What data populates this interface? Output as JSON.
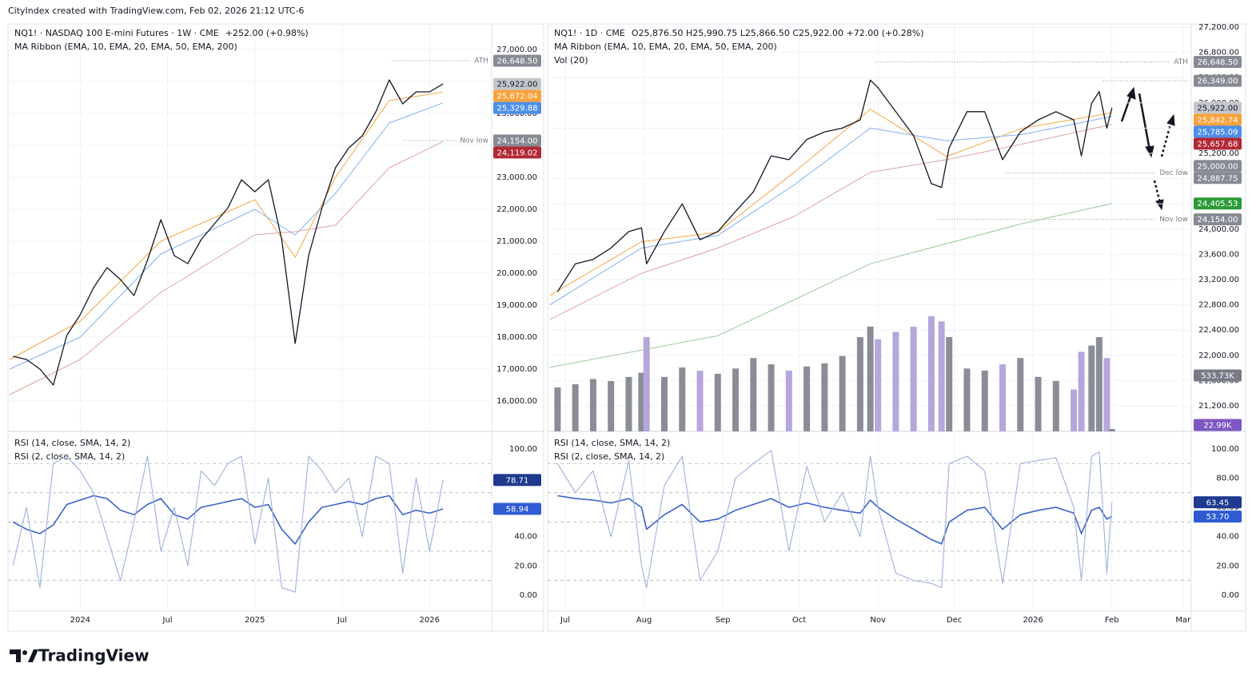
{
  "header": "CityIndex created with TradingView.com, Feb 02, 2026 21:12 UTC-6",
  "footer": "TradingView",
  "chart_data": [
    {
      "type": "line",
      "title": "NQ1! · NASDAQ 100 E-mini Futures · 1W · CME",
      "change": "+252.00 (+0.98%)",
      "indicator": "MA Ribbon (EMA, 10, EMA, 20, EMA, 50, EMA, 200)",
      "x": [
        -20,
        -16,
        -12,
        -8,
        -4,
        0,
        4,
        8,
        12,
        16,
        20,
        24,
        28,
        32,
        36,
        40,
        44,
        48,
        52,
        56,
        60,
        64,
        68,
        72,
        76,
        80,
        84,
        88,
        92,
        96,
        100,
        104,
        108
      ],
      "values": [
        17400,
        17300,
        17000,
        16500,
        18050,
        18700,
        19550,
        20175,
        19800,
        19300,
        20400,
        21675,
        20550,
        20300,
        21050,
        21550,
        22050,
        22925,
        22550,
        22925,
        21050,
        17800,
        20550,
        22050,
        23300,
        23925,
        24300,
        25050,
        26050,
        25300,
        25675,
        25675,
        25922
      ],
      "color": "#131722",
      "last": {
        "value": 25922,
        "label": "25,922.00"
      },
      "xlim": [
        -21.5,
        122.5
      ],
      "xticks": [
        {
          "value": 0,
          "label": "2024"
        },
        {
          "value": 26,
          "label": "Jul"
        },
        {
          "value": 52,
          "label": "2025"
        },
        {
          "value": 78,
          "label": "Jul"
        },
        {
          "value": 104,
          "label": "2026"
        }
      ],
      "ylim": [
        15050,
        27800
      ],
      "yticks": [
        {
          "value": 16000,
          "label": "16,000.00"
        },
        {
          "value": 17000,
          "label": "17,000.00"
        },
        {
          "value": 18000,
          "label": "18,000.00"
        },
        {
          "value": 19000,
          "label": "19,000.00"
        },
        {
          "value": 20000,
          "label": "20,000.00"
        },
        {
          "value": 21000,
          "label": "21,000.00"
        },
        {
          "value": 22000,
          "label": "22,000.00"
        },
        {
          "value": 23000,
          "label": "23,000.00"
        },
        {
          "value": 24000,
          "label": "24,000.00"
        },
        {
          "value": 25000,
          "label": "25,000.00"
        },
        {
          "value": 26000,
          "label": "26,000.00"
        },
        {
          "value": 27000,
          "label": "27,000.00"
        }
      ],
      "emas": [
        {
          "color": "#f5a742",
          "badge_color": "#f7a23b",
          "x": [
            -21,
            0,
            24,
            52,
            64,
            76,
            92,
            108
          ],
          "values": [
            17300,
            18500,
            21000,
            22300,
            20500,
            23000,
            25400,
            25672.04
          ],
          "last_label": "25,672.04"
        },
        {
          "color": "#7fb0ee",
          "badge_color": "#4d8fe8",
          "x": [
            -21,
            0,
            24,
            52,
            64,
            76,
            92,
            108
          ],
          "values": [
            17000,
            18000,
            20600,
            22000,
            21200,
            22500,
            24700,
            25329.88
          ],
          "last_label": "25,329.88"
        },
        {
          "color": "#dea3a3",
          "badge_color": "#b22833",
          "x": [
            -21,
            0,
            24,
            52,
            64,
            76,
            92,
            108
          ],
          "values": [
            16200,
            17300,
            19400,
            21200,
            21300,
            21500,
            23300,
            24119.02
          ],
          "last_label": "24,119.02"
        }
      ],
      "levels": [
        {
          "value": 26648.5,
          "label": "26,648.50",
          "name": "ATH"
        },
        {
          "value": 24154,
          "label": "24,154.00",
          "name": "Nov low"
        }
      ],
      "rsi": {
        "ylim": [
          -11,
          112
        ],
        "yticks": [
          {
            "value": 0,
            "label": "0.00"
          },
          {
            "value": 20,
            "label": "20.00"
          },
          {
            "value": 40,
            "label": "40.00"
          },
          {
            "value": 60,
            "label": "60.00"
          },
          {
            "value": 80,
            "label": "80.00"
          },
          {
            "value": 100,
            "label": "100.00"
          }
        ],
        "levels": [
          90,
          70,
          50,
          30,
          10
        ],
        "series": [
          {
            "title": "RSI (14, close, SMA, 14, 2)",
            "color": "#3c62c8",
            "badge_color": "#2f5bd3",
            "values": [
              50,
              45,
              42,
              48,
              62,
              65,
              68,
              66,
              58,
              55,
              62,
              66,
              55,
              52,
              60,
              62,
              64,
              66,
              60,
              62,
              45,
              35,
              50,
              60,
              62,
              64,
              62,
              66,
              68,
              55,
              58,
              56,
              58.94
            ],
            "last_label": "58.94"
          },
          {
            "title": "RSI (2, close, SMA, 14, 2)",
            "color": "#9fb0dc",
            "badge_color": "#1e3a8f",
            "values": [
              20,
              60,
              5,
              90,
              95,
              85,
              70,
              40,
              10,
              50,
              95,
              30,
              60,
              20,
              85,
              75,
              90,
              95,
              35,
              80,
              5,
              2,
              95,
              85,
              70,
              80,
              40,
              95,
              90,
              15,
              80,
              30,
              78.71
            ],
            "last_label": "78.71"
          }
        ]
      }
    },
    {
      "type": "line",
      "title": "NQ1! · 1D · CME",
      "change": "O25,876.50 H25,990.75 L25,866.50 C25,922.00 +72.00 (+0.28%)",
      "indicator": "MA Ribbon (EMA, 10, EMA, 20, EMA, 50, EMA, 200)",
      "x": [
        -3,
        4,
        11,
        18,
        25,
        30,
        32,
        39,
        46,
        53,
        60,
        67,
        74,
        81,
        88,
        95,
        102,
        109,
        116,
        120,
        123,
        130,
        137,
        144,
        148,
        151,
        158,
        165,
        172,
        179,
        186,
        193,
        200,
        203,
        207,
        210,
        213,
        215
      ],
      "values": [
        23010,
        23450,
        23520,
        23700,
        23960,
        24020,
        23450,
        23960,
        24400,
        23830,
        23960,
        24280,
        24590,
        25160,
        25100,
        25420,
        25540,
        25600,
        25730,
        26360,
        26240,
        25860,
        25480,
        24720,
        24660,
        25290,
        25860,
        25860,
        25100,
        25540,
        25730,
        25860,
        25730,
        25160,
        25990,
        26180,
        25600,
        25922
      ],
      "color": "#131722",
      "last": {
        "value": 25922,
        "label": "25,922.00"
      },
      "xlim": [
        -6.9,
        246.2
      ],
      "xticks": [
        {
          "value": 0,
          "label": "Jul"
        },
        {
          "value": 31,
          "label": "Aug"
        },
        {
          "value": 62,
          "label": "Sep"
        },
        {
          "value": 92,
          "label": "Oct"
        },
        {
          "value": 123,
          "label": "Nov"
        },
        {
          "value": 153,
          "label": "Dec"
        },
        {
          "value": 184,
          "label": "2026"
        },
        {
          "value": 215,
          "label": "Feb"
        },
        {
          "value": 243,
          "label": "Mar"
        }
      ],
      "ylim": [
        20795,
        27250
      ],
      "yticks": [
        {
          "value": 21200,
          "label": "21,200.00"
        },
        {
          "value": 21600,
          "label": "21,600.00"
        },
        {
          "value": 22000,
          "label": "22,000.00"
        },
        {
          "value": 22400,
          "label": "22,400.00"
        },
        {
          "value": 22800,
          "label": "22,800.00"
        },
        {
          "value": 23200,
          "label": "23,200.00"
        },
        {
          "value": 23600,
          "label": "23,600.00"
        },
        {
          "value": 24000,
          "label": "24,000.00"
        },
        {
          "value": 24400,
          "label": "24,400.00"
        },
        {
          "value": 24800,
          "label": "24,800.00"
        },
        {
          "value": 25200,
          "label": "25,200.00"
        },
        {
          "value": 25600,
          "label": "25,600.00"
        },
        {
          "value": 26000,
          "label": "26,000.00"
        },
        {
          "value": 26400,
          "label": "26,400.00"
        },
        {
          "value": 26800,
          "label": "26,800.00"
        },
        {
          "value": 27200,
          "label": "27,200.00"
        }
      ],
      "emas": [
        {
          "color": "#f5a742",
          "badge_color": "#f7a23b",
          "x": [
            -6,
            30,
            60,
            90,
            120,
            150,
            180,
            215
          ],
          "values": [
            22950,
            23800,
            23950,
            24900,
            25900,
            25150,
            25600,
            25842.74
          ],
          "last_label": "25,842.74"
        },
        {
          "color": "#7fb0ee",
          "badge_color": "#4d8fe8",
          "x": [
            -6,
            30,
            60,
            90,
            120,
            150,
            180,
            215
          ],
          "values": [
            22800,
            23700,
            23900,
            24700,
            25600,
            25400,
            25500,
            25785.09
          ],
          "last_label": "25,785.09"
        },
        {
          "color": "#dea3a3",
          "badge_color": "#b22833",
          "x": [
            -6,
            30,
            60,
            90,
            120,
            150,
            180,
            215
          ],
          "values": [
            22570,
            23300,
            23700,
            24200,
            24900,
            25100,
            25350,
            25657.68
          ],
          "last_label": "25,657.68"
        },
        {
          "color": "#9cc79c",
          "badge_color": "#2e9b3a",
          "x": [
            -6,
            60,
            120,
            180,
            215
          ],
          "values": [
            21810,
            22310,
            23450,
            24090,
            24405.53
          ],
          "last_label": "24,405.53"
        }
      ],
      "levels": [
        {
          "value": 26648.5,
          "label": "26,648.50",
          "name": "ATH"
        },
        {
          "value": 26349,
          "label": "26,349.00"
        },
        {
          "value": 25000,
          "label": "25,000.00"
        },
        {
          "value": 24887.75,
          "label": "24,887.75",
          "name": "Dec low"
        },
        {
          "value": 24154,
          "label": "24,154.00",
          "name": "Nov low"
        }
      ],
      "volume": {
        "title": "Vol (20)",
        "ylim": [
          0,
          3890000
        ],
        "up_color": "#8a8d96",
        "down_color": "#b7a6dc",
        "values": [
          420000,
          450000,
          500000,
          480000,
          520000,
          560000,
          900000,
          520000,
          610000,
          580000,
          550000,
          600000,
          700000,
          640000,
          580000,
          620000,
          650000,
          720000,
          900000,
          1000000,
          880000,
          950000,
          1000000,
          1100000,
          1050000,
          900000,
          600000,
          580000,
          640000,
          700000,
          520000,
          480000,
          400000,
          760000,
          820000,
          900000,
          700000,
          22990
        ],
        "ma": {
          "value": 533730,
          "label": "533.73K"
        },
        "last": {
          "value": 22990,
          "label": "22.99K"
        }
      },
      "rsi": {
        "ylim": [
          -11,
          112
        ],
        "yticks": [
          {
            "value": 0,
            "label": "0.00"
          },
          {
            "value": 20,
            "label": "20.00"
          },
          {
            "value": 40,
            "label": "40.00"
          },
          {
            "value": 60,
            "label": "60.00"
          },
          {
            "value": 80,
            "label": "80.00"
          },
          {
            "value": 100,
            "label": "100.00"
          }
        ],
        "levels": [
          90,
          70,
          50,
          30,
          10
        ],
        "series": [
          {
            "title": "RSI (14, close, SMA, 14, 2)",
            "color": "#3c62c8",
            "badge_color": "#2f5bd3",
            "values": [
              68,
              66,
              65,
              63,
              66,
              60,
              45,
              55,
              62,
              50,
              52,
              58,
              62,
              66,
              60,
              63,
              60,
              58,
              56,
              65,
              60,
              52,
              45,
              38,
              35,
              50,
              58,
              60,
              45,
              55,
              58,
              60,
              56,
              42,
              58,
              60,
              52,
              53.7
            ],
            "last_label": "53.70"
          },
          {
            "title": "RSI (2, close, SMA, 14, 2)",
            "color": "#9fb0dc",
            "badge_color": "#1e3a8f",
            "values": [
              90,
              70,
              85,
              40,
              92,
              20,
              5,
              75,
              95,
              10,
              30,
              80,
              90,
              99,
              30,
              88,
              50,
              70,
              40,
              95,
              60,
              15,
              10,
              8,
              5,
              90,
              95,
              85,
              8,
              90,
              92,
              94,
              60,
              10,
              95,
              98,
              15,
              63.45
            ],
            "last_label": "63.45"
          }
        ]
      }
    }
  ]
}
